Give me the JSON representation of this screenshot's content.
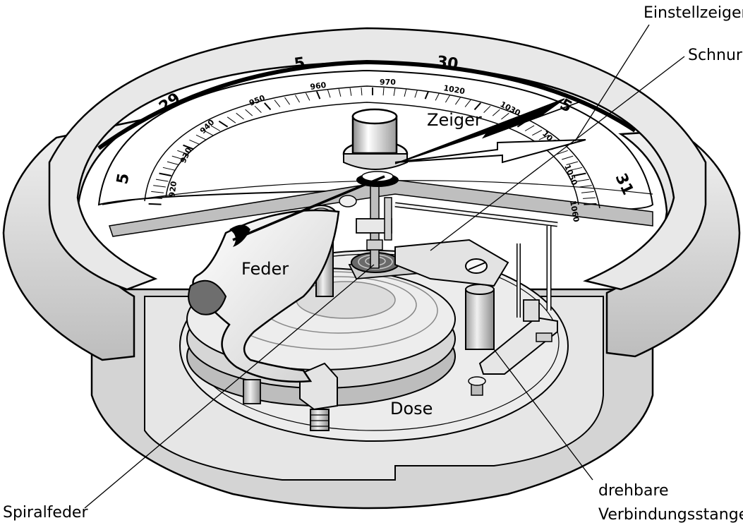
{
  "labels": {
    "einstellzeiger": "Einstellzeiger",
    "schnur": "Schnur",
    "zeiger": "Zeiger",
    "feder": "Feder",
    "dose": "Dose",
    "spiralfeder": "Spiralfeder",
    "drehbare_line1": "drehbare",
    "drehbare_line2": "Verbindungsstange"
  },
  "outer_scale": {
    "big_left": "5",
    "num_29": "29",
    "num_5_top": "5",
    "num_30": "30",
    "num_5_right": "5",
    "num_31": "31"
  },
  "inner_scale": {
    "s920": "920",
    "s930": "930",
    "s940": "940",
    "s950": "950",
    "s960": "960",
    "s970": "970",
    "s1020": "1020",
    "s1030": "1030",
    "s1040": "1040",
    "s1050": "1050",
    "s1060": "1060"
  },
  "colors": {
    "line": "#000000",
    "light_gray": "#d9d9d9",
    "mid_gray": "#b3b3b3",
    "dark_gray": "#8c8c8c",
    "white": "#ffffff"
  }
}
